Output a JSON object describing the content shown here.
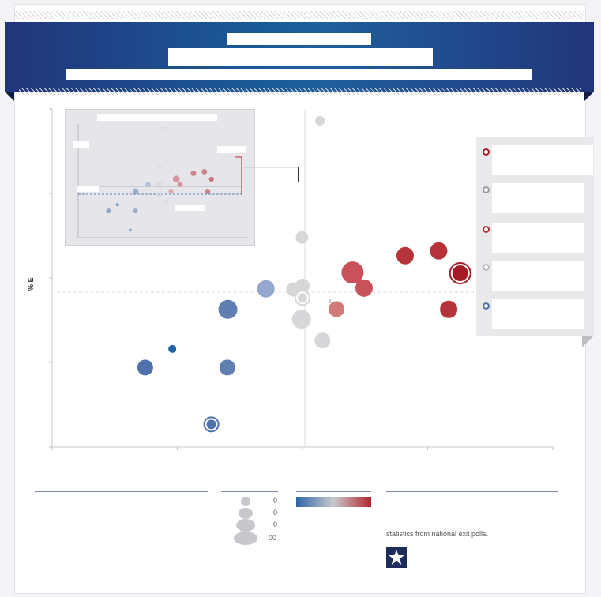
{
  "banner": {
    "kicker": "",
    "title": "",
    "subtitle": ""
  },
  "chart_data": {
    "type": "scatter",
    "title": "",
    "xlabel": "",
    "ylabel": "% E",
    "grid": false,
    "legend_position": "right",
    "xlim": [
      0,
      100
    ],
    "ylim": [
      0,
      100
    ],
    "reference_lines": {
      "x": 50,
      "y": 48
    },
    "points": [
      {
        "x": 53.5,
        "y": 96.5,
        "size": 6,
        "color": "#d7d7da",
        "ring": false
      },
      {
        "x": 49.9,
        "y": 62.0,
        "size": 8,
        "color": "#d7d7da",
        "ring": false
      },
      {
        "x": 70.5,
        "y": 56.6,
        "size": 11,
        "color": "#b7333b",
        "ring": false
      },
      {
        "x": 77.2,
        "y": 58.0,
        "size": 11,
        "color": "#b7333b",
        "ring": false
      },
      {
        "x": 81.5,
        "y": 51.4,
        "size": 10,
        "color": "#a41c25",
        "ring": true
      },
      {
        "x": 60.0,
        "y": 51.6,
        "size": 14,
        "color": "#c9525a",
        "ring": false
      },
      {
        "x": 62.3,
        "y": 47.0,
        "size": 11,
        "color": "#c9525a",
        "ring": false
      },
      {
        "x": 50.0,
        "y": 47.7,
        "size": 9,
        "color": "#d7d7da",
        "ring": false
      },
      {
        "x": 48.2,
        "y": 46.6,
        "size": 9,
        "color": "#d7d7da",
        "ring": false
      },
      {
        "x": 42.7,
        "y": 46.8,
        "size": 11,
        "color": "#94a8cf",
        "ring": false
      },
      {
        "x": 50.0,
        "y": 44.1,
        "size": 6,
        "color": "#d7d7da",
        "ring": true
      },
      {
        "x": 56.8,
        "y": 40.8,
        "size": 10,
        "color": "#d27a78",
        "ring": false
      },
      {
        "x": 79.2,
        "y": 40.7,
        "size": 11,
        "color": "#b7333b",
        "ring": false
      },
      {
        "x": 35.1,
        "y": 40.7,
        "size": 12,
        "color": "#5f7fb3",
        "ring": false
      },
      {
        "x": 49.8,
        "y": 37.8,
        "size": 12,
        "color": "#d7d7da",
        "ring": false
      },
      {
        "x": 54.0,
        "y": 31.5,
        "size": 10,
        "color": "#d7d7da",
        "ring": false
      },
      {
        "x": 24.0,
        "y": 29.0,
        "size": 5,
        "color": "#1f62a0",
        "ring": false
      },
      {
        "x": 18.6,
        "y": 23.5,
        "size": 10,
        "color": "#4f72ad",
        "ring": false
      },
      {
        "x": 35.0,
        "y": 23.5,
        "size": 10,
        "color": "#5f7fb3",
        "ring": false
      },
      {
        "x": 31.8,
        "y": 6.7,
        "size": 6,
        "color": "#4f72ad",
        "ring": true
      }
    ]
  },
  "legend": {
    "items": [
      {
        "color": "#a41c25",
        "label": ""
      },
      {
        "color": "#9a9aa0",
        "label": ""
      },
      {
        "color": "#b7333b",
        "label": ""
      },
      {
        "color": "#b9b9be",
        "label": ""
      },
      {
        "color": "#4f72ad",
        "label": ""
      }
    ]
  },
  "footer": {
    "source_text": "statistics from national exit polls.",
    "size_legend_values": [
      "0",
      "0",
      "0",
      "00"
    ]
  }
}
